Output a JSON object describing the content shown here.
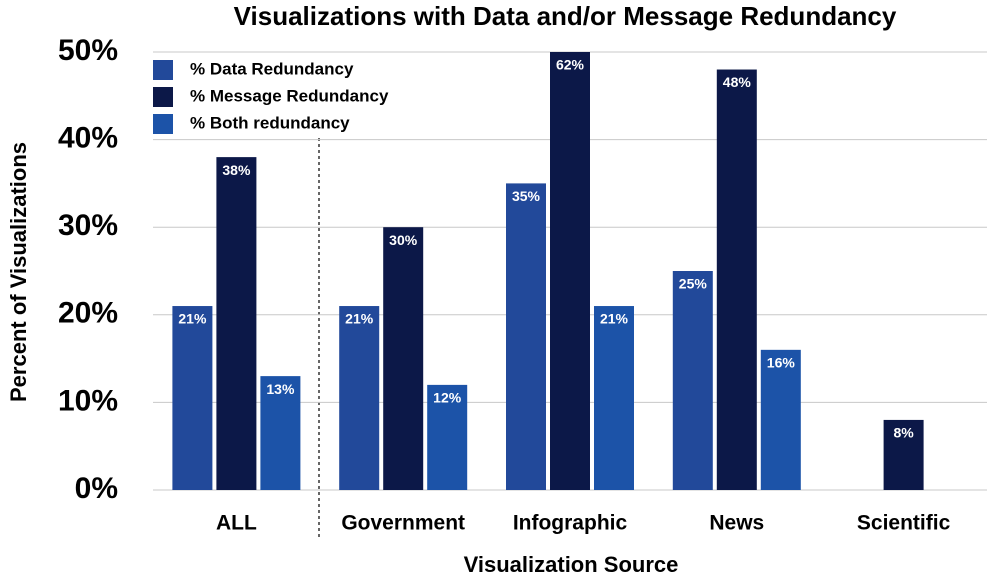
{
  "chart_data": {
    "type": "bar",
    "title": "Visualizations with Data and/or Message Redundancy",
    "x_label": "Visualization Source",
    "y_label": "Percent of Visualizations",
    "categories": [
      "ALL",
      "Government",
      "Infographic",
      "News",
      "Scientific"
    ],
    "series": [
      {
        "name": "% Data Redundancy",
        "color": "#22499a",
        "values": [
          21,
          21,
          35,
          25,
          null
        ],
        "value_labels": [
          "21%",
          "21%",
          "35%",
          "25%",
          null
        ]
      },
      {
        "name": "% Message Redundancy",
        "color": "#0c1848",
        "values": [
          38,
          30,
          62,
          48,
          8
        ],
        "value_labels": [
          "38%",
          "30%",
          "62%",
          "48%",
          "8%"
        ]
      },
      {
        "name": "% Both redundancy",
        "color": "#1c53a8",
        "values": [
          13,
          12,
          21,
          16,
          null
        ],
        "value_labels": [
          "13%",
          "12%",
          "21%",
          "16%",
          null
        ]
      }
    ],
    "ylim": [
      0,
      50
    ],
    "yticks": [
      {
        "value": 0,
        "label": "0%"
      },
      {
        "value": 10,
        "label": "10%"
      },
      {
        "value": 20,
        "label": "20%"
      },
      {
        "value": 30,
        "label": "30%"
      },
      {
        "value": 40,
        "label": "40%"
      },
      {
        "value": 50,
        "label": "50%"
      }
    ],
    "grid": true,
    "legend": "top-left"
  }
}
